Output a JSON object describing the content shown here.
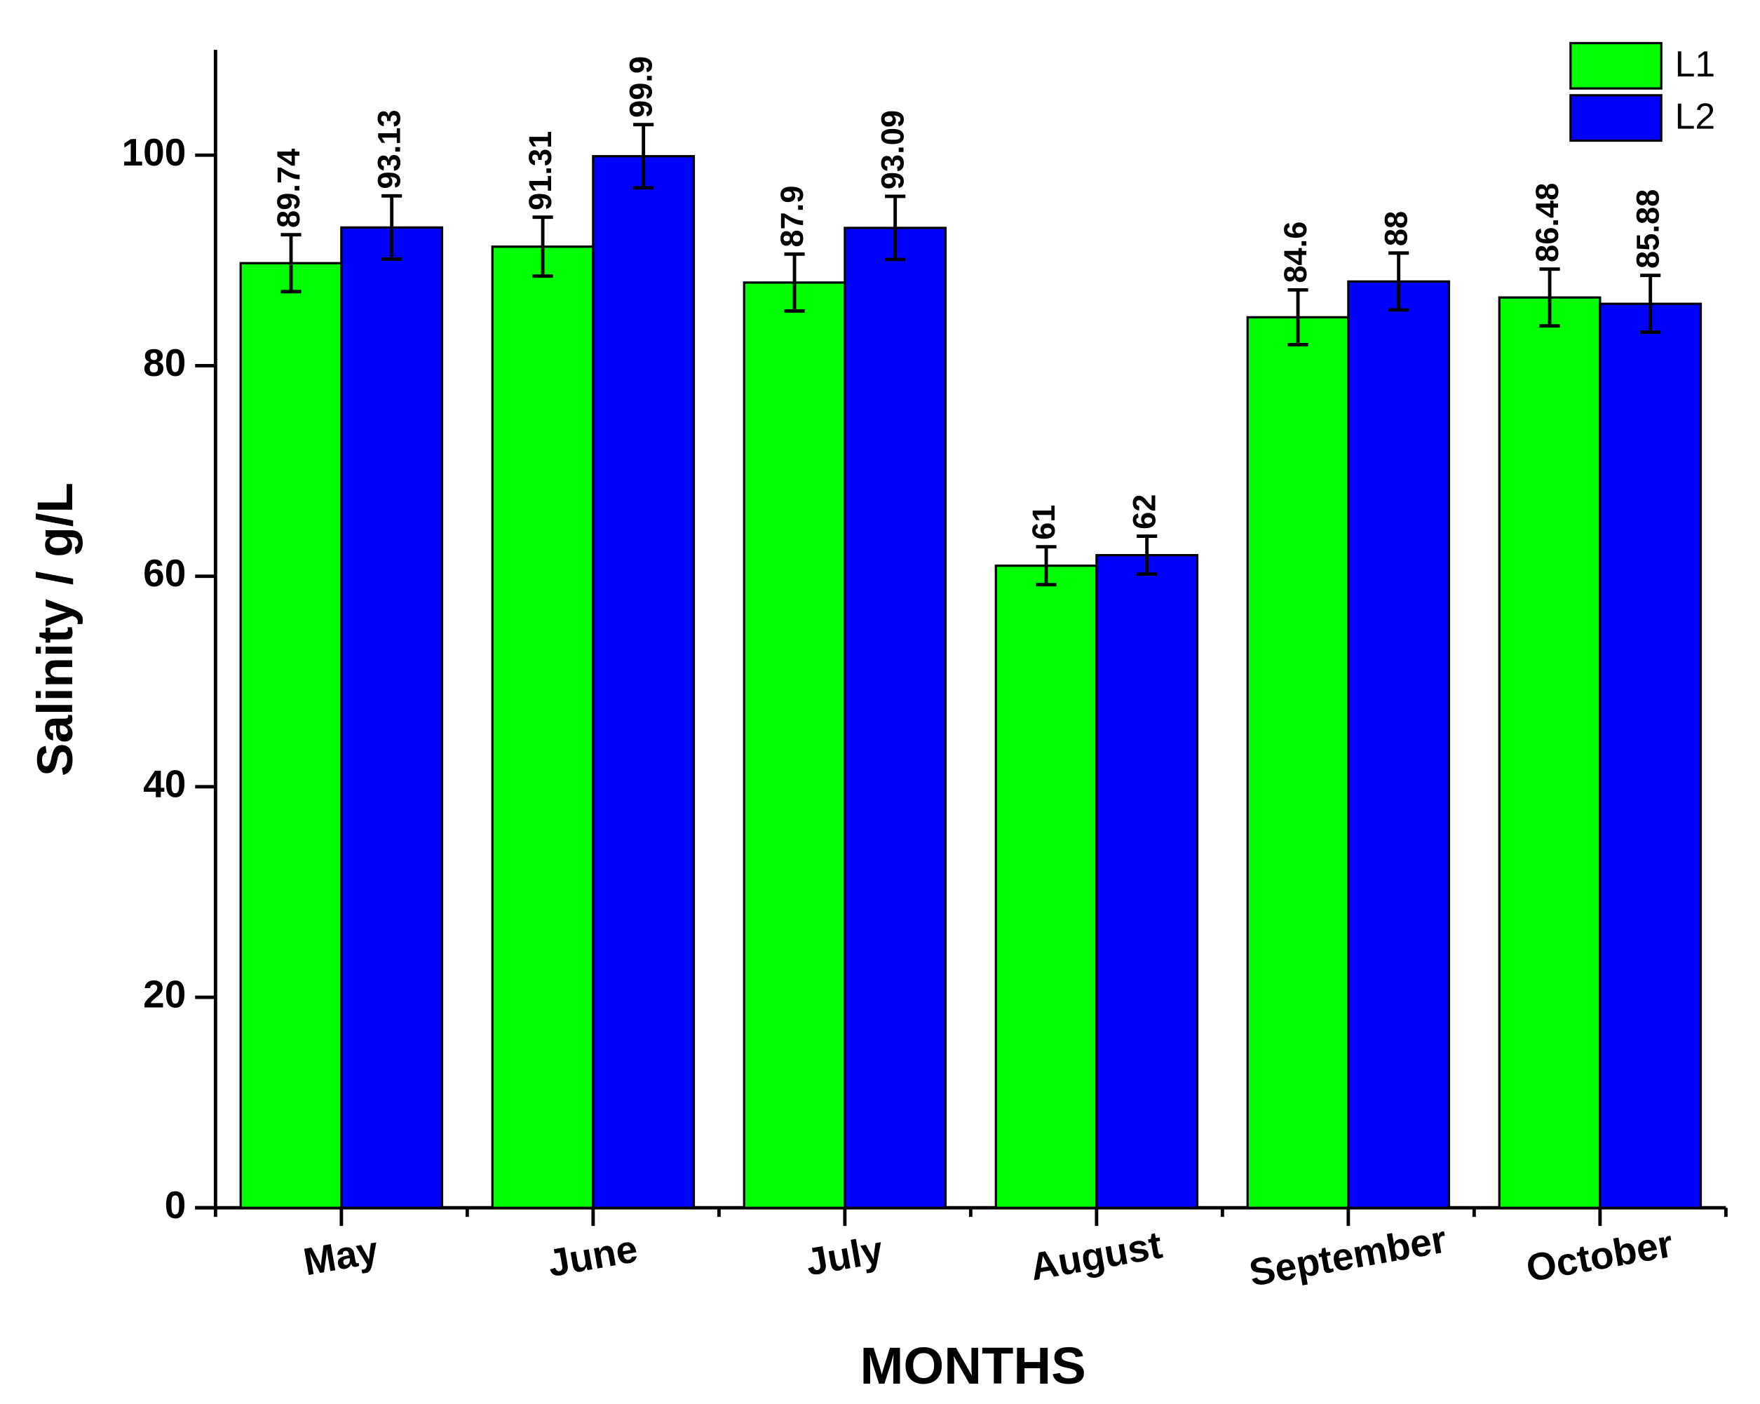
{
  "chart_data": {
    "type": "bar",
    "x_label": "MONTHS",
    "y_label": "Salinity / g/L",
    "categories": [
      "May",
      "June",
      "July",
      "August",
      "September",
      "October"
    ],
    "series": [
      {
        "name": "L1",
        "color": "#00ff00",
        "values": [
          89.74,
          91.31,
          87.9,
          61,
          84.6,
          86.48
        ],
        "errors": [
          2.7,
          2.8,
          2.7,
          1.8,
          2.6,
          2.7
        ]
      },
      {
        "name": "L2",
        "color": "#0000ff",
        "values": [
          93.13,
          99.9,
          93.09,
          62,
          88,
          85.88
        ],
        "errors": [
          3,
          3,
          3,
          1.8,
          2.7,
          2.7
        ]
      }
    ],
    "ylim": [
      0,
      110
    ],
    "yticks": [
      0,
      20,
      40,
      60,
      80,
      100
    ],
    "legend": "top-right"
  }
}
